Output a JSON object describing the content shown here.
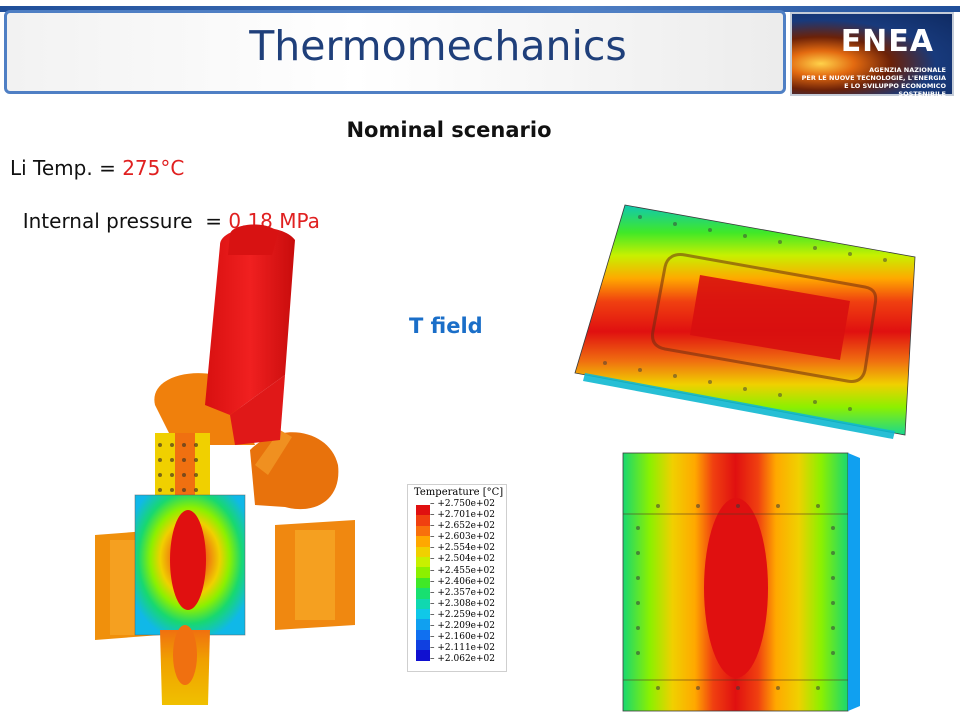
{
  "header": {
    "title": "Thermomechanics",
    "logo_text": "ENEA",
    "logo_lines": [
      "AGENZIA NAZIONALE",
      "PER LE NUOVE TECNOLOGIE, L'ENERGIA",
      "E LO SVILUPPO ECONOMICO SOSTENIBILE"
    ]
  },
  "heading": "Nominal scenario",
  "params": [
    {
      "label": "Li Temp. = ",
      "value": "275°C"
    },
    {
      "label": "Internal pressure  = ",
      "value": "0.18 MPa"
    }
  ],
  "field_label": "T field",
  "legend": {
    "title": "Temperature [°C]",
    "ticks": [
      "+2.750e+02",
      "+2.701e+02",
      "+2.652e+02",
      "+2.603e+02",
      "+2.554e+02",
      "+2.504e+02",
      "+2.455e+02",
      "+2.406e+02",
      "+2.357e+02",
      "+2.308e+02",
      "+2.259e+02",
      "+2.209e+02",
      "+2.160e+02",
      "+2.111e+02",
      "+2.062e+02"
    ],
    "colors": [
      "#e01010",
      "#f04010",
      "#f8700c",
      "#ffa800",
      "#f0d000",
      "#c8f000",
      "#8cf000",
      "#40e828",
      "#18e070",
      "#10d8b0",
      "#10c8e8",
      "#10a0f0",
      "#1070f0",
      "#1040e0",
      "#1010d0"
    ]
  },
  "colors": {
    "accent": "#1f3f7a",
    "value": "#e02020",
    "field_label": "#1a6ec8"
  }
}
